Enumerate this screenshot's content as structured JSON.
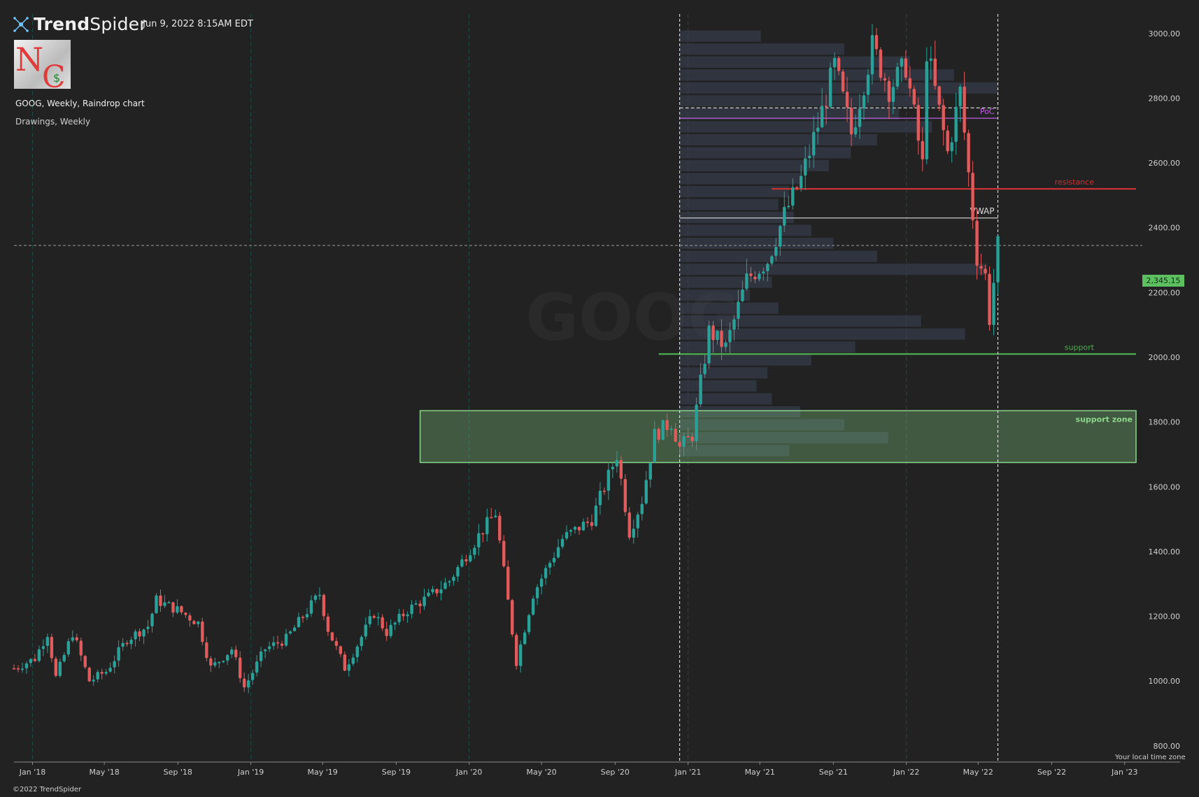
{
  "header": {
    "brand_prefix": "Trend",
    "brand_suffix": "Spider",
    "datetime": "Jun 9, 2022 8:15AM EDT",
    "chart_info": "GOOG, Weekly, Raindrop chart",
    "drawings_info": "Drawings, Weekly"
  },
  "footer": {
    "copyright": "©2022 TrendSpider",
    "timezone_note": "Your local time zone"
  },
  "last_price_label": "2,345.15",
  "icons": [
    "trendspider-logo-icon",
    "nc-dollar-logo-icon"
  ],
  "colors": {
    "background": "#222222",
    "bull": "#2aa198",
    "bear": "#e05b5b",
    "resistance": "#c83232",
    "support": "#4caf50",
    "support_zone": "#8bd88b",
    "poc": "#c060e0",
    "vwap": "#dcdcdc",
    "last_price": "#5cc060"
  },
  "chart_data": {
    "type": "line",
    "symbol": "GOOG",
    "interval": "Weekly",
    "style": "Raindrop",
    "watermark": "GOOG",
    "x_ticks": [
      "Jan '18",
      "May '18",
      "Sep '18",
      "Jan '19",
      "May '19",
      "Sep '19",
      "Jan '20",
      "May '20",
      "Sep '20",
      "Jan '21",
      "May '21",
      "Sep '21",
      "Jan '22",
      "May '22",
      "Sep '22",
      "Jan '23"
    ],
    "y_ticks": [
      800,
      1000,
      1200,
      1400,
      1600,
      1800,
      2000,
      2200,
      2400,
      2600,
      2800,
      3000
    ],
    "ylim": [
      750,
      3060
    ],
    "xlim": [
      "2017-12-01",
      "2023-01-20"
    ],
    "grid": false,
    "series": [
      {
        "name": "",
        "points": [
          [
            "2017-12-01",
            1040
          ],
          [
            "2018-01-05",
            1070
          ],
          [
            "2018-01-26",
            1150
          ],
          [
            "2018-02-09",
            1010
          ],
          [
            "2018-03-09",
            1150
          ],
          [
            "2018-04-06",
            1000
          ],
          [
            "2018-05-04",
            1030
          ],
          [
            "2018-06-08",
            1130
          ],
          [
            "2018-07-13",
            1170
          ],
          [
            "2018-07-27",
            1250
          ],
          [
            "2018-08-31",
            1220
          ],
          [
            "2018-10-05",
            1180
          ],
          [
            "2018-10-26",
            1040
          ],
          [
            "2018-11-30",
            1100
          ],
          [
            "2018-12-21",
            980
          ],
          [
            "2019-01-25",
            1100
          ],
          [
            "2019-03-01",
            1130
          ],
          [
            "2019-04-26",
            1270
          ],
          [
            "2019-05-10",
            1160
          ],
          [
            "2019-06-07",
            1040
          ],
          [
            "2019-07-26",
            1210
          ],
          [
            "2019-08-16",
            1150
          ],
          [
            "2019-09-20",
            1220
          ],
          [
            "2019-10-25",
            1260
          ],
          [
            "2019-11-29",
            1310
          ],
          [
            "2020-01-17",
            1450
          ],
          [
            "2020-02-14",
            1520
          ],
          [
            "2020-03-20",
            1060
          ],
          [
            "2020-04-17",
            1270
          ],
          [
            "2020-06-05",
            1440
          ],
          [
            "2020-07-24",
            1500
          ],
          [
            "2020-09-04",
            1700
          ],
          [
            "2020-09-25",
            1460
          ],
          [
            "2020-10-16",
            1560
          ],
          [
            "2020-11-06",
            1760
          ],
          [
            "2020-12-04",
            1800
          ],
          [
            "2020-12-18",
            1720
          ],
          [
            "2021-01-08",
            1760
          ],
          [
            "2021-02-05",
            2080
          ],
          [
            "2021-03-05",
            2030
          ],
          [
            "2021-04-09",
            2240
          ],
          [
            "2021-05-14",
            2300
          ],
          [
            "2021-06-11",
            2440
          ],
          [
            "2021-07-09",
            2550
          ],
          [
            "2021-08-13",
            2760
          ],
          [
            "2021-09-03",
            2900
          ],
          [
            "2021-10-01",
            2690
          ],
          [
            "2021-11-05",
            2960
          ],
          [
            "2021-12-03",
            2830
          ],
          [
            "2021-12-31",
            2900
          ],
          [
            "2022-01-28",
            2590
          ],
          [
            "2022-02-04",
            2950
          ],
          [
            "2022-03-11",
            2630
          ],
          [
            "2022-04-01",
            2820
          ],
          [
            "2022-04-29",
            2310
          ],
          [
            "2022-05-13",
            2250
          ],
          [
            "2022-05-20",
            2120
          ],
          [
            "2022-06-03",
            2345
          ]
        ]
      }
    ],
    "volume_profile": {
      "start": "2020-12-18",
      "end": "2022-06-03",
      "bins": [
        {
          "price": 2990,
          "level": 0.37
        },
        {
          "price": 2950,
          "level": 0.75
        },
        {
          "price": 2910,
          "level": 1.05
        },
        {
          "price": 2870,
          "level": 1.25
        },
        {
          "price": 2830,
          "level": 1.45
        },
        {
          "price": 2790,
          "level": 1.2
        },
        {
          "price": 2750,
          "level": 1.0
        },
        {
          "price": 2710,
          "level": 1.15
        },
        {
          "price": 2670,
          "level": 0.9
        },
        {
          "price": 2630,
          "level": 0.78
        },
        {
          "price": 2590,
          "level": 0.68
        },
        {
          "price": 2550,
          "level": 0.55
        },
        {
          "price": 2510,
          "level": 0.5
        },
        {
          "price": 2470,
          "level": 0.45
        },
        {
          "price": 2430,
          "level": 0.52
        },
        {
          "price": 2390,
          "level": 0.6
        },
        {
          "price": 2350,
          "level": 0.7
        },
        {
          "price": 2310,
          "level": 0.9
        },
        {
          "price": 2270,
          "level": 1.4
        },
        {
          "price": 2230,
          "level": 0.42
        },
        {
          "price": 2190,
          "level": 0.32
        },
        {
          "price": 2150,
          "level": 0.45
        },
        {
          "price": 2110,
          "level": 1.1
        },
        {
          "price": 2070,
          "level": 1.3
        },
        {
          "price": 2030,
          "level": 0.8
        },
        {
          "price": 1990,
          "level": 0.6
        },
        {
          "price": 1950,
          "level": 0.4
        },
        {
          "price": 1910,
          "level": 0.35
        },
        {
          "price": 1870,
          "level": 0.42
        },
        {
          "price": 1830,
          "level": 0.55
        },
        {
          "price": 1790,
          "level": 0.75
        },
        {
          "price": 1750,
          "level": 0.95
        },
        {
          "price": 1710,
          "level": 0.5
        }
      ]
    },
    "horizontal_lines": [
      {
        "label": "resistance",
        "price": 2520,
        "from": "2021-05-21",
        "to": "2023-01-20",
        "color": "#c83232",
        "style": "solid"
      },
      {
        "label": "support",
        "price": 2010,
        "from": "2020-11-13",
        "to": "2023-01-20",
        "color": "#4caf50",
        "style": "solid"
      },
      {
        "label": "VWAP",
        "price": 2430,
        "from": "2020-12-18",
        "to": "2022-06-03",
        "color": "#dcdcdc",
        "style": "solid"
      },
      {
        "label": "PoC",
        "price": 2738,
        "from": "2020-12-18",
        "to": "2022-06-03",
        "color": "#c060e0",
        "style": "solid"
      },
      {
        "label": "",
        "price": 2770,
        "from": "2020-12-18",
        "to": "2022-06-03",
        "color": "#e8e8e8",
        "style": "dashed"
      }
    ],
    "zones": [
      {
        "label": "support zone",
        "low": 1675,
        "high": 1835,
        "from": "2019-10-11",
        "to": "2023-01-20"
      }
    ],
    "vertical_markers": [
      {
        "date": "2020-12-18",
        "style": "dashed",
        "color": "#f0f0f0"
      },
      {
        "date": "2022-06-03",
        "style": "dashed",
        "color": "#f0f0f0"
      }
    ],
    "period_separators": [
      "2018-01-01",
      "2019-01-01",
      "2020-01-01",
      "2021-01-01",
      "2022-01-01"
    ],
    "last_price": 2345.15
  }
}
